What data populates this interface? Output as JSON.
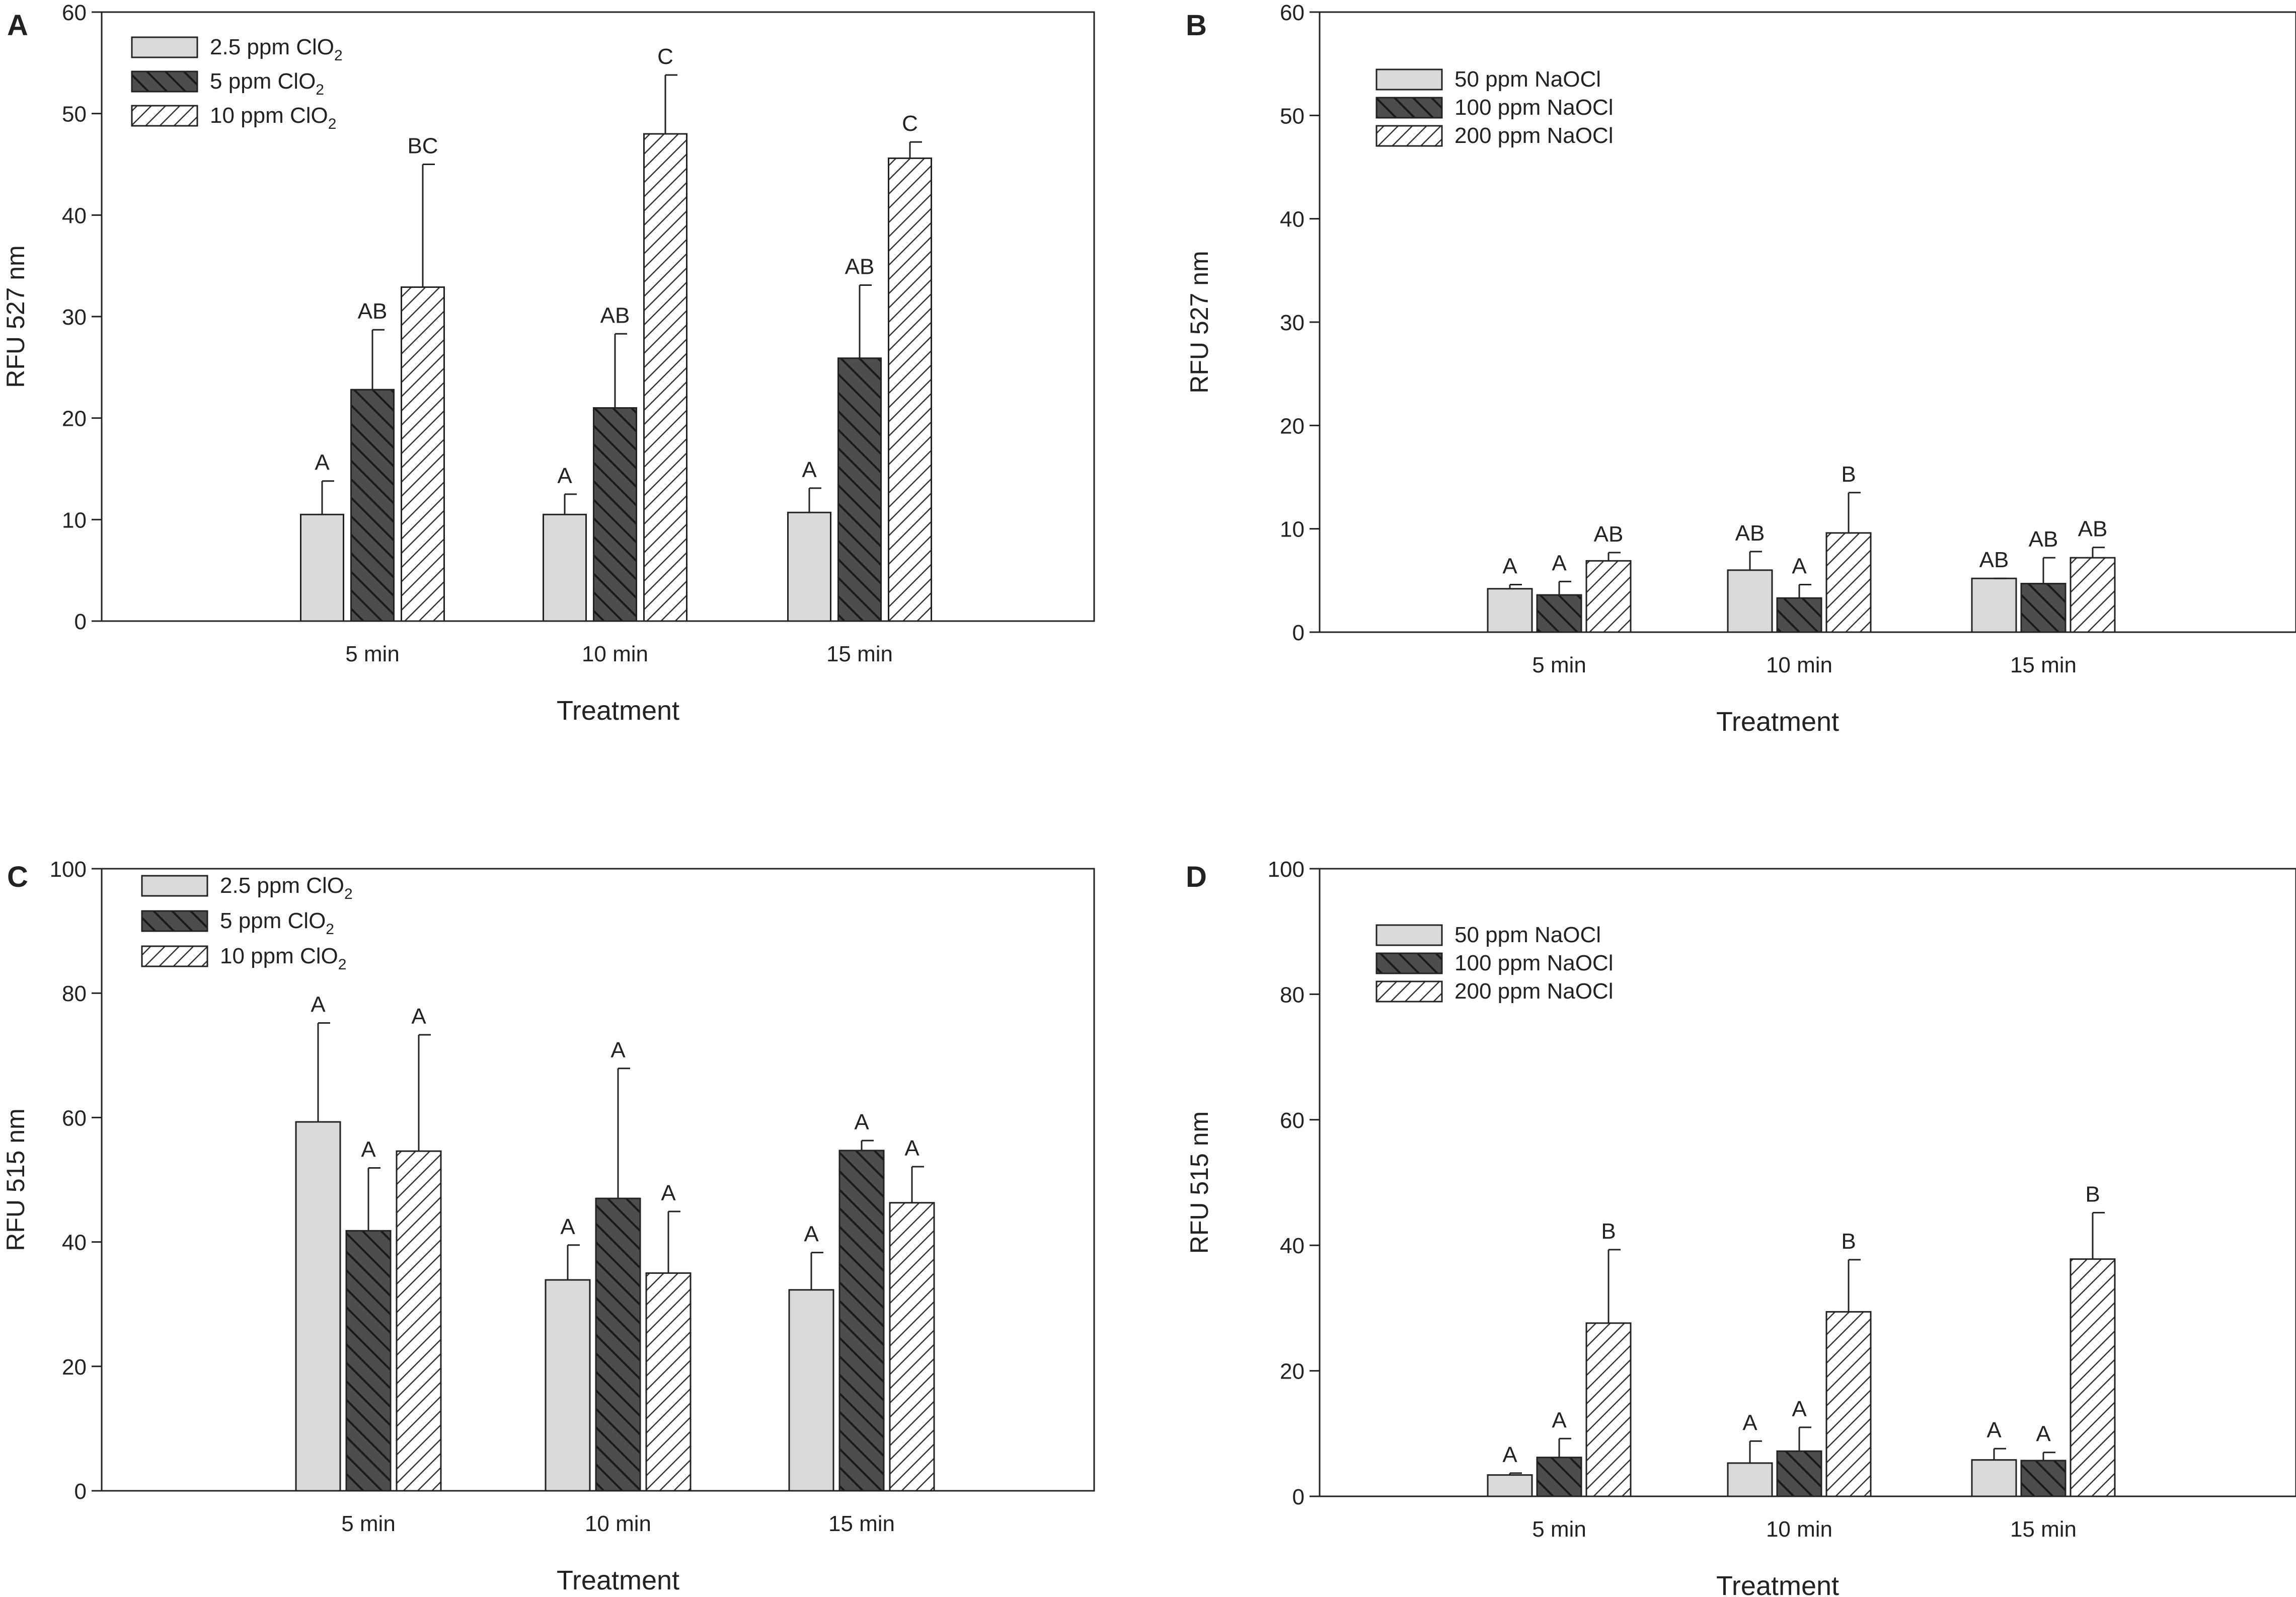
{
  "chart_data": [
    {
      "type": "bar",
      "panel_label": "A",
      "categories": [
        "5 min",
        "10 min",
        "15 min"
      ],
      "xlabel": "Treatment",
      "ylabel": "RFU 527 nm",
      "ylim": [
        0,
        60
      ],
      "yticks": [
        "0",
        "10",
        "20",
        "30",
        "40",
        "50",
        "60"
      ],
      "legend_position": "top-left",
      "series": [
        {
          "name": "2.5 ppm ClO",
          "subscript": "2",
          "pattern": "light",
          "values": [
            10.5,
            10.5,
            10.7
          ],
          "errors": [
            3.3,
            2.0,
            2.4
          ],
          "letters": [
            "A",
            "A",
            "A"
          ]
        },
        {
          "name": "5 ppm ClO",
          "subscript": "2",
          "pattern": "dark",
          "values": [
            22.8,
            21.0,
            25.9
          ],
          "errors": [
            5.9,
            7.3,
            7.2
          ],
          "letters": [
            "AB",
            "AB",
            "AB"
          ]
        },
        {
          "name": "10 ppm ClO",
          "subscript": "2",
          "pattern": "hatch",
          "values": [
            32.9,
            48.0,
            45.6
          ],
          "errors": [
            12.1,
            5.8,
            1.6
          ],
          "letters": [
            "BC",
            "C",
            "C"
          ]
        }
      ]
    },
    {
      "type": "bar",
      "panel_label": "B",
      "categories": [
        "5 min",
        "10 min",
        "15 min"
      ],
      "xlabel": "Treatment",
      "ylabel": "RFU 527 nm",
      "ylim": [
        0,
        60
      ],
      "yticks": [
        "0",
        "10",
        "20",
        "30",
        "40",
        "50",
        "60"
      ],
      "legend_position": "top-left",
      "series": [
        {
          "name": "50 ppm NaOCl",
          "subscript": "",
          "pattern": "light",
          "values": [
            4.2,
            6.0,
            5.2
          ],
          "errors": [
            0.4,
            1.8,
            0.0
          ],
          "letters": [
            "A",
            "AB",
            "AB"
          ]
        },
        {
          "name": "100 ppm NaOCl",
          "subscript": "",
          "pattern": "dark",
          "values": [
            3.6,
            3.3,
            4.7
          ],
          "errors": [
            1.3,
            1.3,
            2.5
          ],
          "letters": [
            "A",
            "A",
            "AB"
          ]
        },
        {
          "name": "200 ppm NaOCl",
          "subscript": "",
          "pattern": "hatch",
          "values": [
            6.9,
            9.6,
            7.2
          ],
          "errors": [
            0.8,
            3.9,
            1.0
          ],
          "letters": [
            "AB",
            "B",
            "AB"
          ]
        }
      ]
    },
    {
      "type": "bar",
      "panel_label": "C",
      "categories": [
        "5 min",
        "10 min",
        "15 min"
      ],
      "xlabel": "Treatment",
      "ylabel": "RFU 515 nm",
      "ylim": [
        0,
        100
      ],
      "yticks": [
        "0",
        "20",
        "40",
        "60",
        "80",
        "100"
      ],
      "legend_position": "top-left",
      "series": [
        {
          "name": "2.5 ppm ClO",
          "subscript": "2",
          "pattern": "light",
          "values": [
            59.3,
            33.9,
            32.3
          ],
          "errors": [
            15.9,
            5.6,
            6.0
          ],
          "letters": [
            "A",
            "A",
            "A"
          ]
        },
        {
          "name": "5 ppm ClO",
          "subscript": "2",
          "pattern": "dark",
          "values": [
            41.8,
            47.0,
            54.7
          ],
          "errors": [
            10.1,
            20.9,
            1.6
          ],
          "letters": [
            "A",
            "A",
            "A"
          ]
        },
        {
          "name": "10 ppm ClO",
          "subscript": "2",
          "pattern": "hatch",
          "values": [
            54.6,
            35.0,
            46.3
          ],
          "errors": [
            18.7,
            9.9,
            5.8
          ],
          "letters": [
            "A",
            "A",
            "A"
          ]
        }
      ]
    },
    {
      "type": "bar",
      "panel_label": "D",
      "categories": [
        "5 min",
        "10 min",
        "15 min"
      ],
      "xlabel": "Treatment",
      "ylabel": "RFU 515 nm",
      "ylim": [
        0,
        100
      ],
      "yticks": [
        "0",
        "20",
        "40",
        "60",
        "80",
        "100"
      ],
      "legend_position": "top-left",
      "series": [
        {
          "name": "50 ppm NaOCl",
          "subscript": "",
          "pattern": "light",
          "values": [
            3.4,
            5.3,
            5.8
          ],
          "errors": [
            0.3,
            3.5,
            1.8
          ],
          "letters": [
            "A",
            "A",
            "A"
          ]
        },
        {
          "name": "100 ppm NaOCl",
          "subscript": "",
          "pattern": "dark",
          "values": [
            6.2,
            7.2,
            5.7
          ],
          "errors": [
            3.0,
            3.8,
            1.3
          ],
          "letters": [
            "A",
            "A",
            "A"
          ]
        },
        {
          "name": "200 ppm NaOCl",
          "subscript": "",
          "pattern": "hatch",
          "values": [
            27.6,
            29.4,
            37.8
          ],
          "errors": [
            11.7,
            8.3,
            7.4
          ],
          "letters": [
            "B",
            "B",
            "B"
          ]
        }
      ]
    }
  ],
  "colors": {
    "light_fill": "#d9d9d9",
    "dark_fill": "#4d4d4d",
    "hatch_fill": "#ffffff",
    "stroke": "#222222",
    "background": "#ffffff"
  }
}
